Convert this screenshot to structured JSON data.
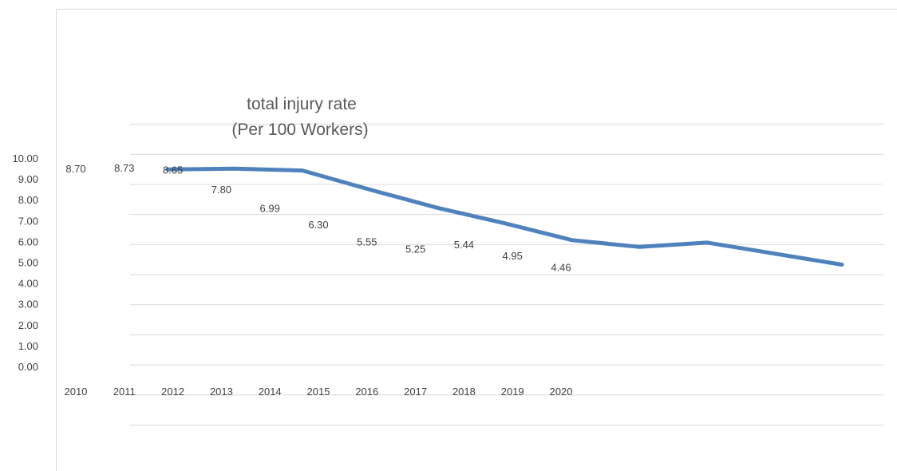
{
  "chart_data": {
    "type": "line",
    "title_line1": "total injury rate",
    "title_line2": "(Per 100 Workers)",
    "xlabel": "",
    "ylabel": "",
    "categories": [
      "2010",
      "2011",
      "2012",
      "2013",
      "2014",
      "2015",
      "2016",
      "2017",
      "2018",
      "2019",
      "2020"
    ],
    "y_ticks": [
      "10.00",
      "9.00",
      "8.00",
      "7.00",
      "6.00",
      "5.00",
      "4.00",
      "3.00",
      "2.00",
      "1.00",
      "0.00"
    ],
    "data_labels": [
      "8.70",
      "8.73",
      "8.65",
      "7.80",
      "6.99",
      "6.30",
      "5.55",
      "5.25",
      "5.44",
      "4.95",
      "4.46"
    ],
    "series": [
      {
        "values": [
          8.7,
          8.73,
          8.65,
          7.8,
          6.99,
          6.3,
          5.55,
          5.25,
          5.44,
          4.95,
          4.46
        ]
      }
    ],
    "line_color": "#4f81bd",
    "grid": true,
    "legend": "none"
  }
}
